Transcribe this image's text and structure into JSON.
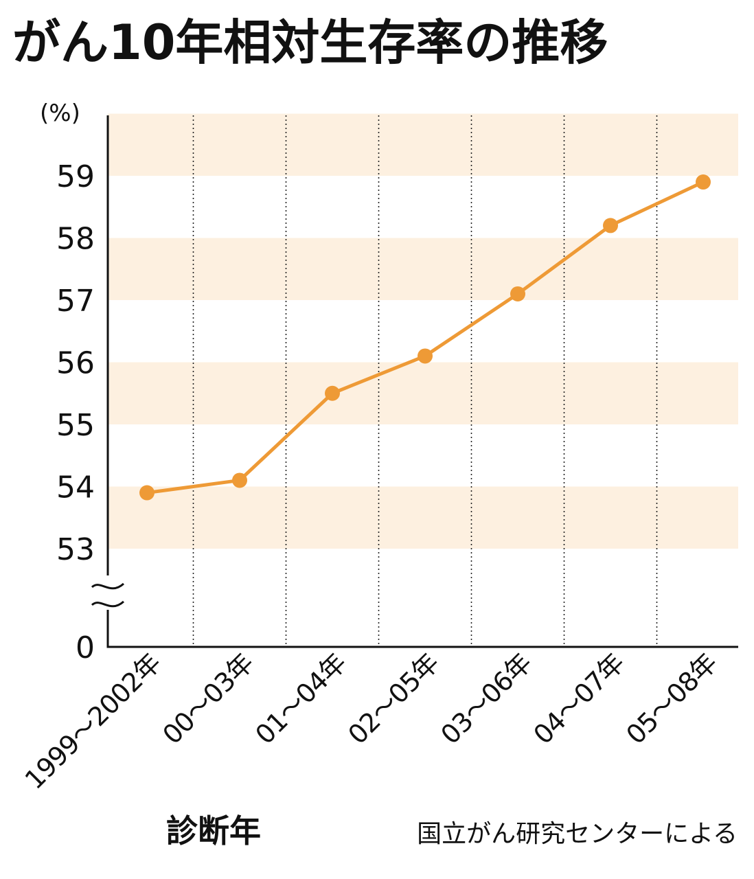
{
  "chart_data": {
    "type": "line",
    "title": "がん10年相対生存率の推移",
    "ylabel": "(%)",
    "xlabel": "診断年",
    "source": "国立がん研究センターによる",
    "categories": [
      "1999～2002年",
      "00～03年",
      "01～04年",
      "02～05年",
      "03～06年",
      "04～07年",
      "05～08年"
    ],
    "values": [
      53.9,
      54.1,
      55.5,
      56.1,
      57.1,
      58.2,
      58.9
    ],
    "yticks": [
      59,
      58,
      57,
      56,
      55,
      54,
      53
    ],
    "axis_zero_label": "0",
    "ylim": [
      53,
      60
    ],
    "axis_break": true,
    "colors": {
      "line": "#ee9a36",
      "band": "#fdf0e0",
      "axis": "#111111"
    }
  }
}
